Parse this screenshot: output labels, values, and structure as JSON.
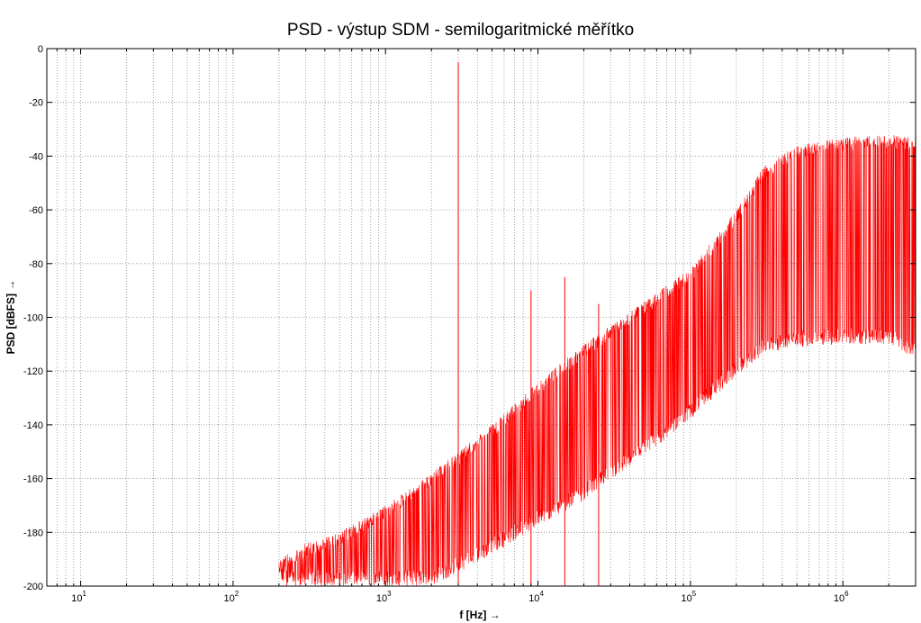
{
  "chart_data": {
    "type": "line",
    "title": "PSD - výstup SDM - semilogaritmické měřítko",
    "xlabel": "f [Hz] →",
    "ylabel": "PSD [dBFS] →",
    "x_scale": "log",
    "xlim": [
      6,
      3000000
    ],
    "ylim": [
      -200,
      0
    ],
    "x_ticks": [
      {
        "value": 10,
        "base": "10",
        "exp": "1"
      },
      {
        "value": 100,
        "base": "10",
        "exp": "2"
      },
      {
        "value": 1000,
        "base": "10",
        "exp": "3"
      },
      {
        "value": 10000,
        "base": "10",
        "exp": "4"
      },
      {
        "value": 100000,
        "base": "10",
        "exp": "5"
      },
      {
        "value": 1000000,
        "base": "10",
        "exp": "6"
      }
    ],
    "y_ticks": [
      0,
      -20,
      -40,
      -60,
      -80,
      -100,
      -120,
      -140,
      -160,
      -180,
      -200
    ],
    "y_tick_labels": [
      "0",
      "-20",
      "-40",
      "-60",
      "-80",
      "-100",
      "-120",
      "-140",
      "-160",
      "-180",
      "-200"
    ],
    "grid": true,
    "series": [
      {
        "color": "#ff0000",
        "envelope": {
          "x": [
            200,
            300,
            500,
            1000,
            2000,
            3000,
            5000,
            10000,
            20000,
            50000,
            100000,
            200000,
            300000,
            500000,
            1000000,
            2000000,
            3000000
          ],
          "upper": [
            -190,
            -184,
            -180,
            -170,
            -158,
            -150,
            -140,
            -124,
            -110,
            -94,
            -82,
            -60,
            -44,
            -36,
            -33,
            -32,
            -33
          ],
          "lower": [
            -200,
            -200,
            -200,
            -200,
            -200,
            -195,
            -188,
            -178,
            -168,
            -152,
            -138,
            -122,
            -114,
            -111,
            -110,
            -110,
            -115
          ]
        },
        "peaks": [
          {
            "x": 3000,
            "y": -5
          },
          {
            "x": 9000,
            "y": -90
          },
          {
            "x": 15000,
            "y": -85
          },
          {
            "x": 25000,
            "y": -95
          }
        ]
      }
    ]
  }
}
